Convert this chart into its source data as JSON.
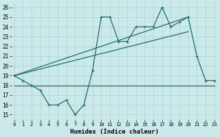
{
  "xlabel": "Humidex (Indice chaleur)",
  "x": [
    0,
    1,
    2,
    3,
    4,
    5,
    6,
    7,
    8,
    9,
    10,
    11,
    12,
    13,
    14,
    15,
    16,
    17,
    18,
    19,
    20,
    21,
    22,
    23
  ],
  "line_flat": [
    18,
    18,
    18,
    18,
    18,
    18,
    18,
    18,
    18,
    18,
    18,
    18,
    18,
    18,
    18,
    18,
    18,
    18,
    18,
    18,
    18,
    18,
    18,
    18
  ],
  "line_jagged": [
    19,
    18.5,
    18,
    17.5,
    16,
    16,
    16.5,
    15,
    16,
    19.5,
    25,
    25,
    22.5,
    22.5,
    24,
    24,
    24,
    26,
    24,
    24.5,
    25,
    21,
    18.5,
    18.5
  ],
  "line_trend1_x": [
    0,
    20
  ],
  "line_trend1_y": [
    19,
    25
  ],
  "line_trend2_x": [
    0,
    20
  ],
  "line_trend2_y": [
    19,
    23.5
  ],
  "bg_color": "#cce9e9",
  "grid_color": "#a8d4d4",
  "line_color": "#1a6b6b",
  "ylim": [
    14.5,
    26.5
  ],
  "xlim": [
    -0.3,
    23.3
  ],
  "yticks": [
    15,
    16,
    17,
    18,
    19,
    20,
    21,
    22,
    23,
    24,
    25,
    26
  ],
  "xticks": [
    0,
    1,
    2,
    3,
    4,
    5,
    6,
    7,
    8,
    9,
    10,
    11,
    12,
    13,
    14,
    15,
    16,
    17,
    18,
    19,
    20,
    21,
    22,
    23
  ]
}
